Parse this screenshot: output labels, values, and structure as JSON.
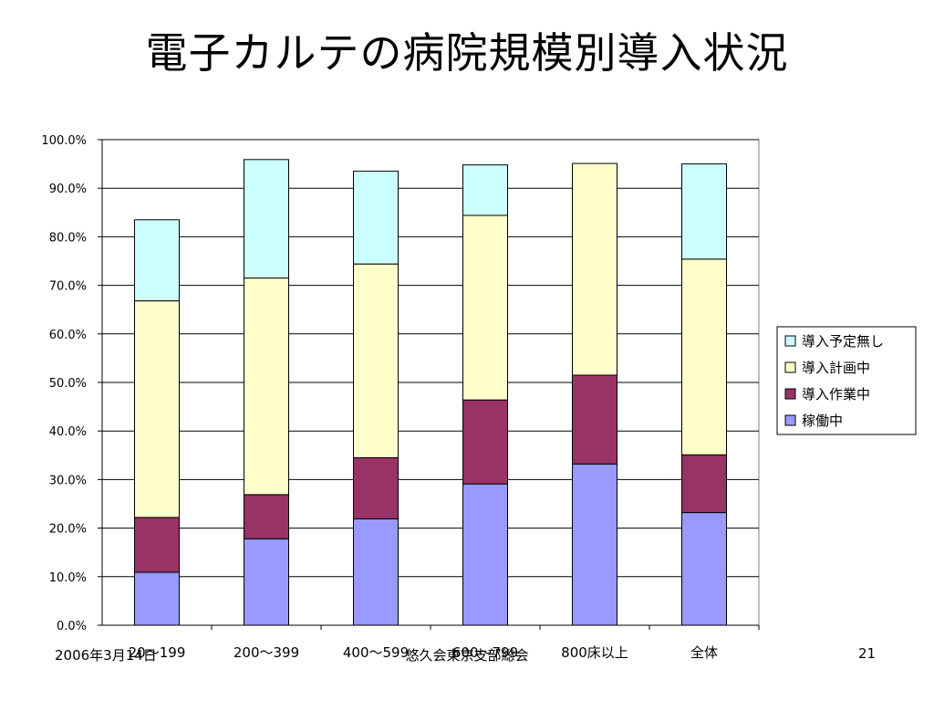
{
  "slide": {
    "title": "電子カルテの病院規模別導入状況",
    "footer_date": "2006年3月14日",
    "footer_center": "悠久会東京支部総会",
    "page_number": "21"
  },
  "chart_data": {
    "type": "bar",
    "stacked": true,
    "title": "",
    "xlabel": "",
    "ylabel": "",
    "ylim": [
      0,
      100
    ],
    "ytick_step": 10,
    "y_tick_format": "percent_1dp",
    "grid": true,
    "legend_position": "right",
    "categories": [
      "20～199",
      "200～399",
      "400～599",
      "600～799",
      "800床以上",
      "全体"
    ],
    "series": [
      {
        "name": "稼働中",
        "color": "#9999ff",
        "values": [
          10.9,
          17.8,
          21.9,
          29.1,
          33.2,
          23.2
        ]
      },
      {
        "name": "導入作業中",
        "color": "#993366",
        "values": [
          11.3,
          9.1,
          12.6,
          17.3,
          18.3,
          11.9
        ]
      },
      {
        "name": "導入計画中",
        "color": "#ffffcc",
        "values": [
          44.6,
          44.6,
          39.9,
          38.0,
          43.6,
          40.3
        ]
      },
      {
        "name": "導入予定無し",
        "color": "#ccffff",
        "values": [
          16.7,
          24.4,
          19.1,
          10.4,
          0.0,
          19.6
        ]
      }
    ]
  }
}
